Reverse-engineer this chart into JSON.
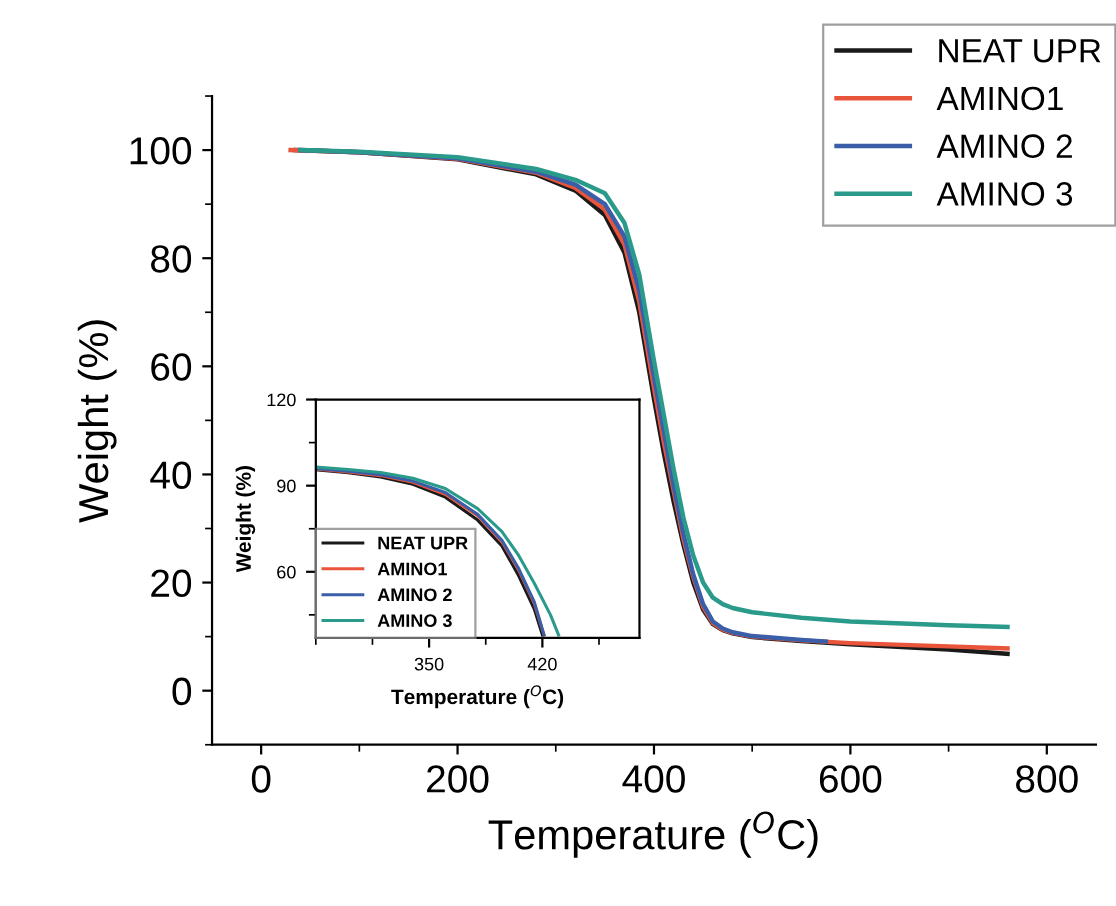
{
  "chart_data": [
    {
      "type": "line",
      "xlabel": "Temperature ($^{O}$C)",
      "ylabel": "Weight (%)",
      "xlim": [
        -50,
        850
      ],
      "ylim": [
        -10,
        110
      ],
      "xticks": [
        0,
        200,
        400,
        600,
        800
      ],
      "yticks": [
        0,
        20,
        40,
        60,
        80,
        100
      ],
      "grid": false,
      "legend": "top right",
      "line_style": "solid",
      "series": [
        {
          "name": "NEAT UPR",
          "color": "#1a1a1a",
          "x": [
            35,
            100,
            200,
            280,
            320,
            350,
            370,
            385,
            400,
            410,
            420,
            430,
            440,
            450,
            460,
            470,
            480,
            500,
            550,
            600,
            700,
            760
          ],
          "values": [
            100,
            99.6,
            98.3,
            95.5,
            92.5,
            88,
            81,
            70,
            54,
            44,
            35,
            27,
            20,
            15,
            12.3,
            11.2,
            10.6,
            9.9,
            9.2,
            8.6,
            7.6,
            6.8
          ]
        },
        {
          "name": "AMINO1",
          "color": "#e8553a",
          "x": [
            30,
            100,
            200,
            280,
            320,
            350,
            370,
            385,
            400,
            410,
            420,
            430,
            440,
            450,
            460,
            470,
            480,
            500,
            550,
            600,
            700,
            760
          ],
          "values": [
            100,
            99.6,
            98.4,
            95.8,
            93,
            89,
            82.5,
            72,
            56,
            46,
            37,
            28,
            21,
            15.5,
            12.5,
            11.3,
            10.7,
            10,
            9.3,
            8.8,
            8.2,
            7.8
          ]
        },
        {
          "name": "AMINO 2",
          "color": "#3a5ea8",
          "x": [
            40,
            100,
            200,
            280,
            320,
            350,
            370,
            385,
            400,
            410,
            420,
            430,
            440,
            450,
            460,
            470,
            480,
            500,
            550,
            575
          ],
          "values": [
            100,
            99.6,
            98.5,
            96,
            93.6,
            90,
            84,
            74,
            58,
            48,
            38,
            29,
            21.5,
            16,
            12.8,
            11.5,
            10.8,
            10.1,
            9.4,
            9.1
          ]
        },
        {
          "name": "AMINO 3",
          "color": "#2a9a8a",
          "x": [
            40,
            100,
            200,
            280,
            320,
            350,
            370,
            385,
            400,
            410,
            420,
            430,
            440,
            450,
            460,
            470,
            480,
            500,
            550,
            600,
            700,
            760
          ],
          "values": [
            100,
            99.7,
            98.7,
            96.5,
            94.5,
            92,
            86.5,
            77,
            61,
            51,
            41,
            32,
            25,
            20,
            17.2,
            16,
            15.3,
            14.5,
            13.5,
            12.8,
            12.1,
            11.8
          ]
        }
      ]
    },
    {
      "type": "line",
      "xlabel": "Temperature ($^{O}$C)",
      "ylabel": "Weight (%)",
      "xlim": [
        280,
        480
      ],
      "ylim": [
        37,
        120
      ],
      "xticks": [
        350,
        420
      ],
      "yticks": [
        60,
        90,
        120
      ],
      "grid": false,
      "legend": "bottom left",
      "line_style": "solid",
      "series": [
        {
          "name": "NEAT UPR",
          "color": "#1a1a1a",
          "x": [
            280,
            300,
            320,
            340,
            360,
            380,
            395,
            405,
            415,
            420
          ],
          "values": [
            95.5,
            94.5,
            93,
            90.5,
            86,
            78,
            69,
            59,
            47,
            38
          ]
        },
        {
          "name": "AMINO1",
          "color": "#e8553a",
          "x": [
            280,
            300,
            320,
            340,
            360,
            380,
            395,
            405,
            415,
            421
          ],
          "values": [
            95.8,
            94.8,
            93.5,
            91.2,
            87,
            79.5,
            70.5,
            61,
            49,
            38
          ]
        },
        {
          "name": "AMINO 2",
          "color": "#3a5ea8",
          "x": [
            280,
            300,
            320,
            340,
            360,
            380,
            395,
            405,
            415,
            421
          ],
          "values": [
            96,
            95,
            93.8,
            91.6,
            87.6,
            80,
            71,
            61.5,
            49.5,
            38
          ]
        },
        {
          "name": "AMINO 3",
          "color": "#2a9a8a",
          "x": [
            280,
            300,
            320,
            340,
            360,
            380,
            395,
            405,
            415,
            425,
            430
          ],
          "values": [
            96.5,
            95.6,
            94.6,
            92.6,
            89,
            82,
            74,
            66,
            56,
            45,
            38
          ]
        }
      ]
    }
  ]
}
